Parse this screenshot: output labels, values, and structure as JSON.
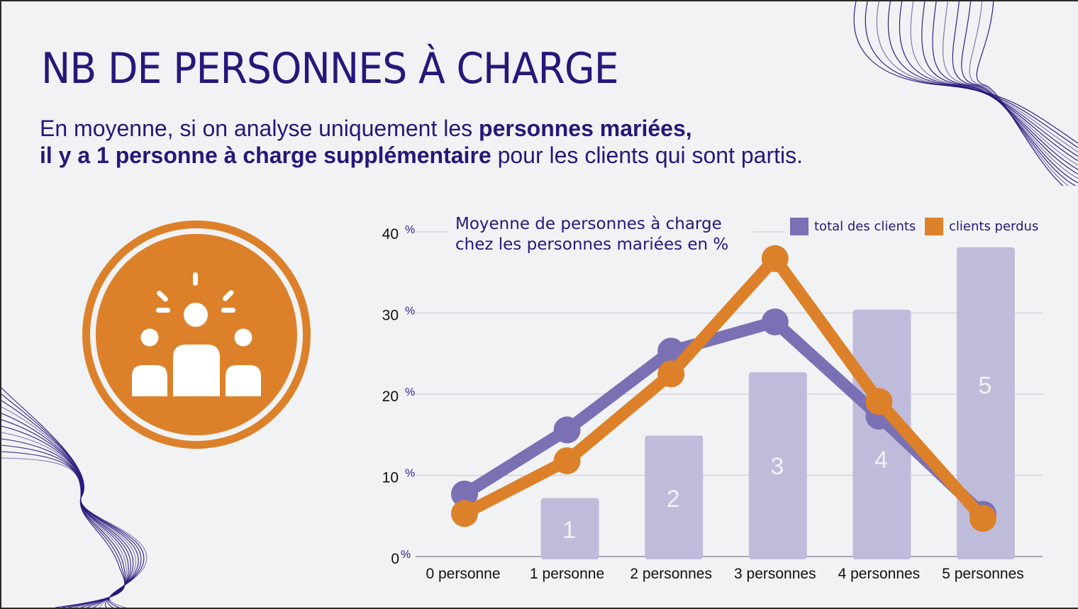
{
  "slide": {
    "title": "NB DE PERSONNES À CHARGE",
    "subtitle_line1_regular": "En moyenne, si on analyse uniquement les ",
    "subtitle_line1_bold": "personnes mariées,",
    "subtitle_line2_bold": "il y a 1 personne à charge supplémentaire",
    "subtitle_line2_regular": " pour les clients qui sont partis."
  },
  "icon": {
    "name": "family-group-icon",
    "color": "#dc8129"
  },
  "colors": {
    "text": "#24187a",
    "purple_line": "#7a70b4",
    "orange_line": "#dc8129",
    "bar_fill": "#bfbcdb",
    "grid": "#c9c9d0"
  },
  "chart_data": {
    "type": "line",
    "title_line1": "Moyenne de personnes à charge",
    "title_line2": "chez les personnes mariées en %",
    "categories": [
      "0 personne",
      "1 personne",
      "2 personnes",
      "3 personnes",
      "4 personnes",
      "5 personnes"
    ],
    "y_ticks": [
      {
        "value": 0,
        "label": "0",
        "unit": "%"
      },
      {
        "value": 10,
        "label": "10",
        "unit": "%"
      },
      {
        "value": 20,
        "label": "20",
        "unit": "%"
      },
      {
        "value": 30,
        "label": "30",
        "unit": "%"
      },
      {
        "value": 40,
        "label": "40",
        "unit": "%"
      }
    ],
    "ylim": [
      0,
      40
    ],
    "grid": true,
    "legend_position": "top-right",
    "legend": [
      {
        "label": "total des clients",
        "color": "#7a70b4"
      },
      {
        "label": "clients perdus",
        "color": "#dc8129"
      }
    ],
    "series": [
      {
        "name": "total des clients",
        "color": "#7a70b4",
        "values": [
          7.7,
          15.6,
          25.3,
          28.9,
          17.3,
          5.2
        ]
      },
      {
        "name": "clients perdus",
        "color": "#dc8129",
        "values": [
          5.3,
          11.8,
          22.5,
          36.7,
          19.1,
          4.7
        ]
      }
    ],
    "background_bars": {
      "categories_index": [
        1,
        2,
        3,
        4,
        5
      ],
      "labels": [
        "1",
        "2",
        "3",
        "4",
        "5"
      ],
      "values": [
        7.2,
        14.9,
        22.7,
        30.4,
        38.1
      ],
      "color": "#bfbcdb"
    }
  }
}
